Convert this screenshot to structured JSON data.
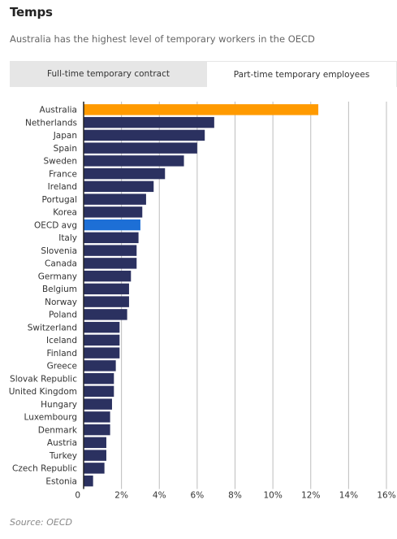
{
  "header": {
    "title": "Temps",
    "subtitle": "Australia has the highest level of temporary workers in the OECD"
  },
  "tabs": [
    {
      "label": "Full-time temporary contract",
      "active": false
    },
    {
      "label": "Part-time temporary employees",
      "active": true
    }
  ],
  "footer": {
    "source": "Source: OECD"
  },
  "colors": {
    "bar": "#2b3160",
    "highlight": "#ff9a00",
    "oecd": "#1d6fd6",
    "grid": "#bdbdbd",
    "axis": "#222222"
  },
  "chart_data": {
    "type": "bar",
    "orientation": "horizontal",
    "title": "",
    "xlabel": "",
    "ylabel": "",
    "xlim": [
      0,
      16
    ],
    "x_ticks": [
      "0",
      "2%",
      "4%",
      "6%",
      "8%",
      "10%",
      "12%",
      "14%",
      "16%"
    ],
    "grid": true,
    "categories": [
      "Australia",
      "Netherlands",
      "Japan",
      "Spain",
      "Sweden",
      "France",
      "Ireland",
      "Portugal",
      "Korea",
      "OECD avg",
      "Italy",
      "Slovenia",
      "Canada",
      "Germany",
      "Belgium",
      "Norway",
      "Poland",
      "Switzerland",
      "Iceland",
      "Finland",
      "Greece",
      "Slovak Republic",
      "United Kingdom",
      "Hungary",
      "Luxembourg",
      "Denmark",
      "Austria",
      "Turkey",
      "Czech Republic",
      "Estonia"
    ],
    "values": [
      12.4,
      6.9,
      6.4,
      6.0,
      5.3,
      4.3,
      3.7,
      3.3,
      3.1,
      3.0,
      2.9,
      2.8,
      2.8,
      2.5,
      2.4,
      2.4,
      2.3,
      1.9,
      1.9,
      1.9,
      1.7,
      1.6,
      1.6,
      1.5,
      1.4,
      1.4,
      1.2,
      1.2,
      1.1,
      0.5
    ],
    "highlight": {
      "Australia": "highlight",
      "OECD avg": "oecd"
    }
  }
}
